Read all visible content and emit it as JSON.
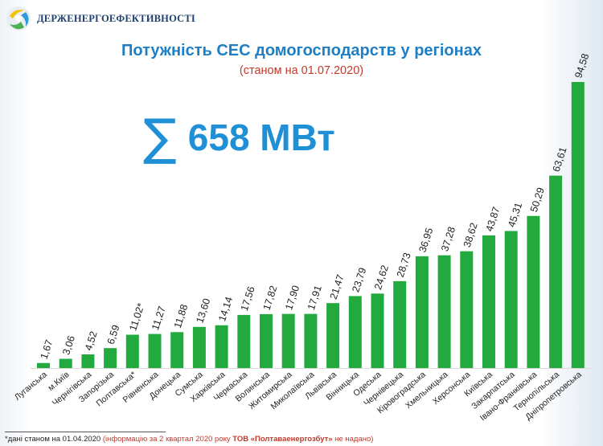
{
  "header": {
    "org_name": "ДЕРЖЕНЕРГОЕФЕКТИВНОСТІ"
  },
  "title": "Потужність СЕС домогосподарств у регіонах",
  "subtitle": "(станом на 01.07.2020)",
  "total": {
    "symbol": "∑",
    "value": "658 МВт"
  },
  "footnote": {
    "part1": "*дані станом на 01.04.2020 ",
    "part2": "(інформацію за 2 квартал 2020 року ",
    "part3": "ТОВ «Полтаваенергозбут»",
    "part4": " не надано)"
  },
  "colors": {
    "bar": "#22aa3e",
    "title": "#1f7fc4",
    "subtitle": "#c0392b",
    "total": "#1f8fd6"
  },
  "chart_data": {
    "type": "bar",
    "categories": [
      "Луганська",
      "м.Київ",
      "Чернігівська",
      "Запорізька",
      "Полтавська*",
      "Рівненська",
      "Донецька",
      "Сумська",
      "Харківська",
      "Черкаська",
      "Волинська",
      "Житомирська",
      "Миколаївська",
      "Львівська",
      "Вінницька",
      "Одеська",
      "Чернівецька",
      "Кіровоградська",
      "Хмельницька",
      "Херсонська",
      "Київська",
      "Закарпатська",
      "Івано-Франківська",
      "Тернопільська",
      "Дніпропетровська"
    ],
    "values": [
      1.67,
      3.06,
      4.52,
      6.59,
      11.02,
      11.27,
      11.88,
      13.6,
      14.14,
      17.56,
      17.82,
      17.9,
      17.91,
      21.47,
      23.79,
      24.62,
      28.73,
      36.95,
      37.28,
      38.62,
      43.87,
      45.31,
      50.29,
      63.61,
      94.58
    ],
    "labels": [
      "1,67",
      "3,06",
      "4,52",
      "6,59",
      "11,02*",
      "11,27",
      "11,88",
      "13,60",
      "14,14",
      "17,56",
      "17,82",
      "17,90",
      "17,91",
      "21,47",
      "23,79",
      "24,62",
      "28,73",
      "36,95",
      "37,28",
      "38,62",
      "43,87",
      "45,31",
      "50,29",
      "63,61",
      "94,58"
    ],
    "title": "Потужність СЕС домогосподарств у регіонах",
    "xlabel": "",
    "ylabel": "",
    "ylim": [
      0,
      94.58
    ],
    "grid": false,
    "legend": "none"
  }
}
